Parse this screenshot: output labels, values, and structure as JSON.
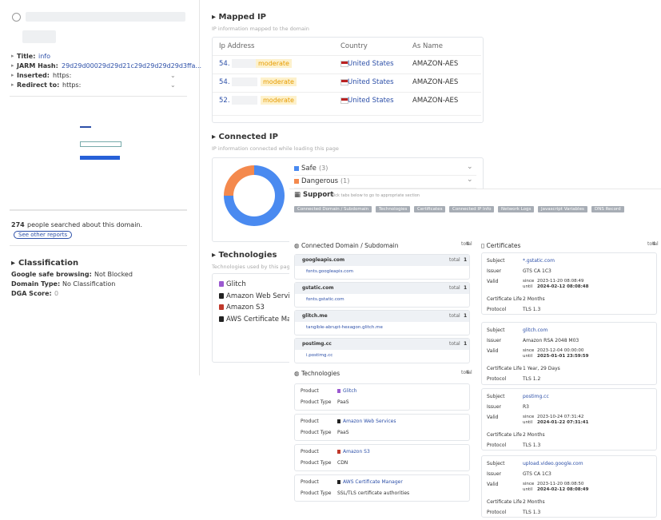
{
  "sidebar": {
    "fields": [
      {
        "label": "Title:",
        "value": "info"
      },
      {
        "label": "JARM Hash:",
        "value": "29d29d00029d29d21c29d29d29d29d3ffa..."
      },
      {
        "label": "Inserted:",
        "value": "https:"
      },
      {
        "label": "Redirect to:",
        "value": "https:"
      }
    ],
    "searched": {
      "count": 274,
      "text": "people searched about this domain.",
      "link": "See other reports"
    },
    "classification": {
      "title": "Classification",
      "rows": [
        {
          "label": "Google safe browsing:",
          "value": "Not Blocked"
        },
        {
          "label": "Domain Type:",
          "value": "No Classification"
        },
        {
          "label": "DGA Score:",
          "value": 0
        }
      ]
    }
  },
  "mapped_ip": {
    "title": "Mapped IP",
    "subtitle": "IP information mapped to the domain",
    "headers": [
      "Ip Address",
      "Country",
      "As Name"
    ],
    "rows": [
      {
        "ip": "54.",
        "badge": "moderate",
        "country": "United States",
        "as_name": "AMAZON-AES"
      },
      {
        "ip": "54.",
        "badge": "moderate",
        "country": "United States",
        "as_name": "AMAZON-AES"
      },
      {
        "ip": "52.",
        "badge": "moderate",
        "country": "United States",
        "as_name": "AMAZON-AES"
      }
    ]
  },
  "connected_ip": {
    "title": "Connected IP",
    "subtitle": "IP information connected while loading this page",
    "chart_data": {
      "type": "donut",
      "categories": [
        "Safe",
        "Dangerous"
      ],
      "values": [
        3,
        1
      ],
      "value_labels": [
        "(3)",
        "(1)"
      ],
      "colors": [
        "#4a8af0",
        "#f4894d"
      ]
    }
  },
  "technologies_left": {
    "title": "Technologies",
    "subtitle": "Technologies used by this page",
    "items": [
      "Glitch",
      "Amazon Web Services",
      "Amazon S3",
      "AWS Certificate Manager"
    ]
  },
  "support": {
    "title": "Support",
    "hint": "Click tabs below to go to appropriate section",
    "tabs": [
      "Connected Domain / Subdomain",
      "Technologies",
      "Certificates",
      "Connected IP Info",
      "Network Logs",
      "Javascript Variables",
      "DNS Record"
    ]
  },
  "total_label": "total",
  "connected_domains": {
    "title": "Connected Domain / Subdomain",
    "total": 4,
    "groups": [
      {
        "domain": "googleapis.com",
        "total": 1,
        "children": [
          "fonts.googleapis.com"
        ]
      },
      {
        "domain": "gstatic.com",
        "total": 1,
        "children": [
          "fonts.gstatic.com"
        ]
      },
      {
        "domain": "glitch.me",
        "total": 1,
        "children": [
          "tangible-abrupt-hexagon.glitch.me"
        ]
      },
      {
        "domain": "postimg.cc",
        "total": 1,
        "children": [
          "i.postimg.cc"
        ]
      }
    ]
  },
  "technologies": {
    "title": "Technologies",
    "total": 4,
    "product_label": "Product",
    "type_label": "Product Type",
    "items": [
      {
        "product": "Glitch",
        "type": "PaaS"
      },
      {
        "product": "Amazon Web Services",
        "type": "PaaS"
      },
      {
        "product": "Amazon S3",
        "type": "CDN"
      },
      {
        "product": "AWS Certificate Manager",
        "type": "SSL/TLS certificate authorities"
      }
    ]
  },
  "certificates": {
    "title": "Certificates",
    "total": 4,
    "labels": {
      "subject": "Subject",
      "issuer": "Issuer",
      "valid": "Valid",
      "since": "since",
      "until": "until",
      "life": "Certificate Life",
      "protocol": "Protocol"
    },
    "items": [
      {
        "subject": "*.gstatic.com",
        "issuer": "GTS CA 1C3",
        "since": "2023-11-20 08:08:49",
        "until": "2024-02-12 08:08:48",
        "life": "2 Months",
        "protocol": "TLS 1.3"
      },
      {
        "subject": "glitch.com",
        "issuer": "Amazon RSA 2048 M03",
        "since": "2023-12-04 00:00:00",
        "until": "2025-01-01 23:59:59",
        "life": "1 Year, 29 Days",
        "protocol": "TLS 1.2"
      },
      {
        "subject": "postimg.cc",
        "issuer": "R3",
        "since": "2023-10-24 07:31:42",
        "until": "2024-01-22 07:31:41",
        "life": "2 Months",
        "protocol": "TLS 1.3"
      },
      {
        "subject": "upload.video.google.com",
        "issuer": "GTS CA 1C3",
        "since": "2023-11-20 08:08:50",
        "until": "2024-02-12 08:08:49",
        "life": "2 Months",
        "protocol": "TLS 1.3"
      }
    ]
  }
}
